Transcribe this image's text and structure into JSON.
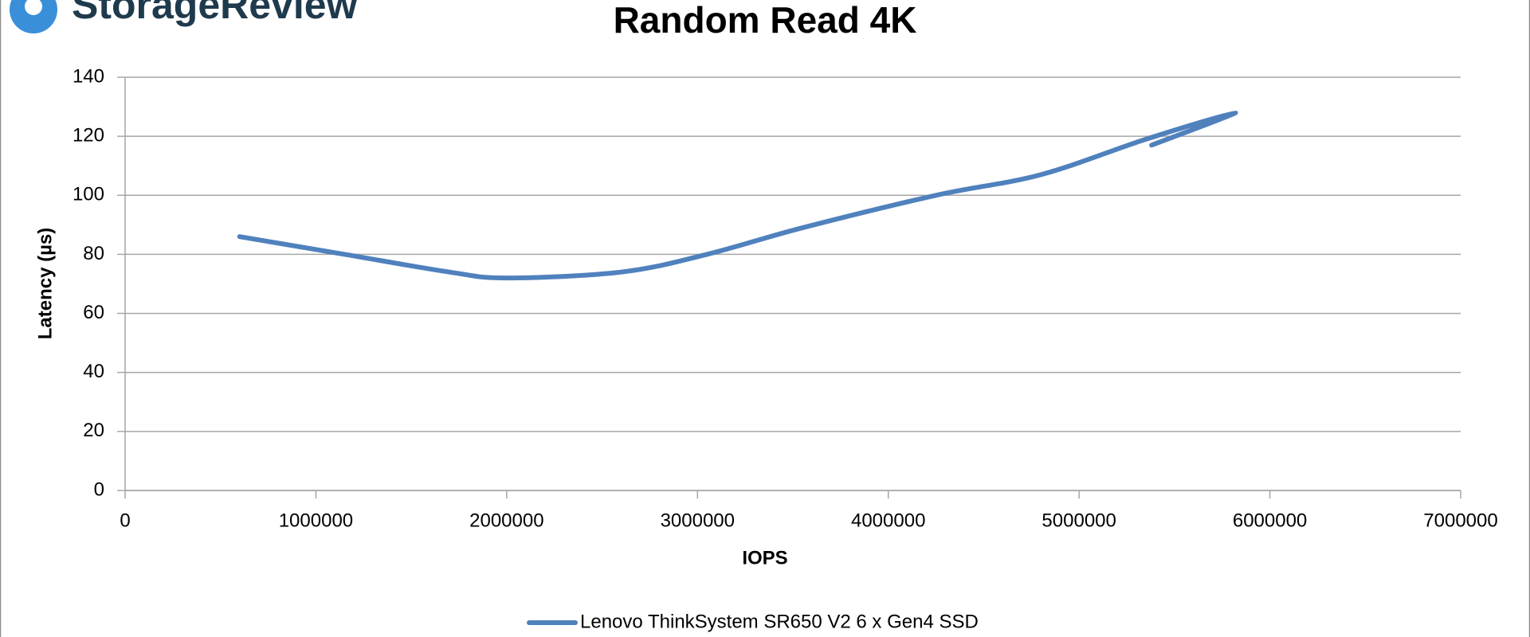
{
  "logo": "StorageReview",
  "chart_data": {
    "type": "line",
    "title": "Random Read 4K",
    "x_label": "IOPS",
    "y_label": "Latency (µs)",
    "x": [
      600000,
      1150000,
      1700000,
      2000000,
      2600000,
      3050000,
      3550000,
      4250000,
      4800000,
      5350000,
      5820000,
      5380000
    ],
    "series": [
      {
        "name": "Lenovo ThinkSystem SR650 V2 6 x Gen4 SSD",
        "color": "#4f81bd",
        "values": [
          86,
          80,
          74,
          72,
          74,
          80,
          89,
          100,
          107,
          119,
          128,
          117
        ]
      }
    ],
    "xlim": [
      0,
      7000000
    ],
    "xticks": [
      0,
      1000000,
      2000000,
      3000000,
      4000000,
      5000000,
      6000000,
      7000000
    ],
    "ylim": [
      0,
      140
    ],
    "yticks": [
      0,
      20,
      40,
      60,
      80,
      100,
      120,
      140
    ],
    "grid": true,
    "legend": "bottom"
  }
}
